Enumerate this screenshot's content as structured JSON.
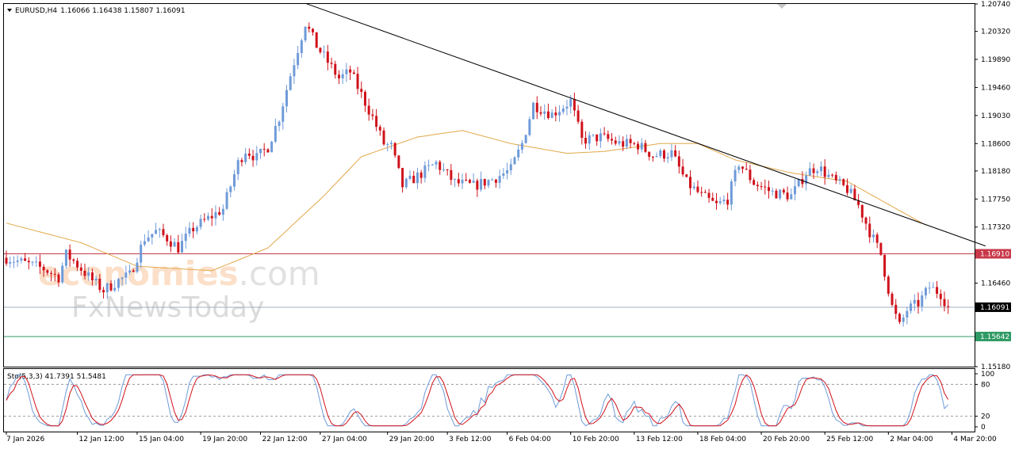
{
  "header": {
    "symbol": "EURUSD,H4",
    "ohlc": "1.16066 1.16438 1.15807 1.16091"
  },
  "indicator_label": "Sto(5,3,3) 41.7391 51.5481",
  "watermark": {
    "line1_colored": "economies",
    "line1_rest": ".com",
    "line2": "FxNewsToday"
  },
  "colors": {
    "bull": "#6f9bd8",
    "bear": "#d0121b",
    "ma": "#e3a84a",
    "resistance": "#c8394a",
    "support": "#2e9a63",
    "current": "#9fb1c0",
    "trend": "#000000",
    "stoch_main": "#6f9bd8",
    "stoch_signal": "#d0121b"
  },
  "chart_data": {
    "type": "candlestick",
    "ylim": [
      1.1518,
      1.2074
    ],
    "y_ticks": [
      "1.20740",
      "1.20320",
      "1.19890",
      "1.19460",
      "1.19030",
      "1.18600",
      "1.18180",
      "1.17750",
      "1.17320",
      "1.16910",
      "1.16460",
      "1.16091",
      "1.15642",
      "1.15180"
    ],
    "x_ticks": [
      "7 Jan 2026",
      "12 Jan 12:00",
      "15 Jan 04:00",
      "19 Jan 20:00",
      "22 Jan 12:00",
      "27 Jan 04:00",
      "29 Jan 20:00",
      "3 Feb 12:00",
      "6 Feb 04:00",
      "10 Feb 20:00",
      "13 Feb 12:00",
      "18 Feb 04:00",
      "20 Feb 20:00",
      "25 Feb 12:00",
      "2 Mar 04:00",
      "4 Mar 20:00"
    ],
    "levels": {
      "resistance": {
        "value": 1.1691,
        "label": "1.16910"
      },
      "current": {
        "value": 1.16091,
        "label": "1.16091"
      },
      "support": {
        "value": 1.15642,
        "label": "1.15642"
      }
    },
    "trendline": {
      "from": {
        "date": "27 Jan 04:00",
        "value": 1.2075
      },
      "to": {
        "date": "5 Mar 12:00",
        "value": 1.1703
      }
    },
    "price_path": [
      [
        0,
        1.1685
      ],
      [
        10,
        1.1668
      ],
      [
        14,
        1.1655
      ],
      [
        16,
        1.169
      ],
      [
        18,
        1.168
      ],
      [
        20,
        1.1668
      ],
      [
        23,
        1.165
      ],
      [
        26,
        1.1635
      ],
      [
        30,
        1.165
      ],
      [
        33,
        1.1658
      ],
      [
        37,
        1.1715
      ],
      [
        40,
        1.1725
      ],
      [
        43,
        1.1715
      ],
      [
        46,
        1.17
      ],
      [
        50,
        1.173
      ],
      [
        54,
        1.1745
      ],
      [
        58,
        1.176
      ],
      [
        62,
        1.183
      ],
      [
        64,
        1.185
      ],
      [
        67,
        1.1838
      ],
      [
        70,
        1.1855
      ],
      [
        73,
        1.19
      ],
      [
        76,
        1.1965
      ],
      [
        80,
        1.2045
      ],
      [
        83,
        1.201
      ],
      [
        86,
        1.1985
      ],
      [
        89,
        1.196
      ],
      [
        92,
        1.197
      ],
      [
        95,
        1.1935
      ],
      [
        98,
        1.19
      ],
      [
        101,
        1.186
      ],
      [
        103,
        1.1855
      ],
      [
        106,
        1.1795
      ],
      [
        110,
        1.181
      ],
      [
        115,
        1.183
      ],
      [
        120,
        1.18
      ],
      [
        125,
        1.1795
      ],
      [
        130,
        1.1805
      ],
      [
        135,
        1.182
      ],
      [
        138,
        1.186
      ],
      [
        141,
        1.192
      ],
      [
        146,
        1.1905
      ],
      [
        151,
        1.1925
      ],
      [
        154,
        1.1865
      ],
      [
        159,
        1.187
      ],
      [
        164,
        1.186
      ],
      [
        169,
        1.1858
      ],
      [
        173,
        1.1842
      ],
      [
        178,
        1.1845
      ],
      [
        182,
        1.18
      ],
      [
        186,
        1.178
      ],
      [
        190,
        1.1765
      ],
      [
        193,
        1.1775
      ],
      [
        196,
        1.183
      ],
      [
        200,
        1.18
      ],
      [
        205,
        1.1785
      ],
      [
        210,
        1.178
      ],
      [
        214,
        1.1815
      ],
      [
        217,
        1.1825
      ],
      [
        222,
        1.18
      ],
      [
        225,
        1.179
      ],
      [
        228,
        1.1765
      ],
      [
        231,
        1.1725
      ],
      [
        234,
        1.169
      ],
      [
        237,
        1.161
      ],
      [
        239,
        1.158
      ],
      [
        241,
        1.1605
      ],
      [
        244,
        1.1615
      ],
      [
        247,
        1.164
      ],
      [
        250,
        1.163
      ],
      [
        252,
        1.1609
      ]
    ],
    "ma_path": [
      [
        0,
        1.1738
      ],
      [
        20,
        1.1708
      ],
      [
        35,
        1.1672
      ],
      [
        55,
        1.1665
      ],
      [
        70,
        1.17
      ],
      [
        85,
        1.178
      ],
      [
        95,
        1.184
      ],
      [
        110,
        1.187
      ],
      [
        122,
        1.188
      ],
      [
        135,
        1.186
      ],
      [
        150,
        1.1845
      ],
      [
        160,
        1.1848
      ],
      [
        175,
        1.186
      ],
      [
        185,
        1.186
      ],
      [
        195,
        1.1835
      ],
      [
        210,
        1.1815
      ],
      [
        225,
        1.1802
      ],
      [
        235,
        1.177
      ],
      [
        246,
        1.1735
      ]
    ],
    "stochastic": {
      "label": "Sto(5,3,3)",
      "main": 41.7391,
      "signal": 51.5481,
      "levels": [
        80,
        20
      ],
      "ylim": [
        0,
        100
      ],
      "ticks": [
        "100",
        "80",
        "20",
        "0"
      ]
    }
  }
}
